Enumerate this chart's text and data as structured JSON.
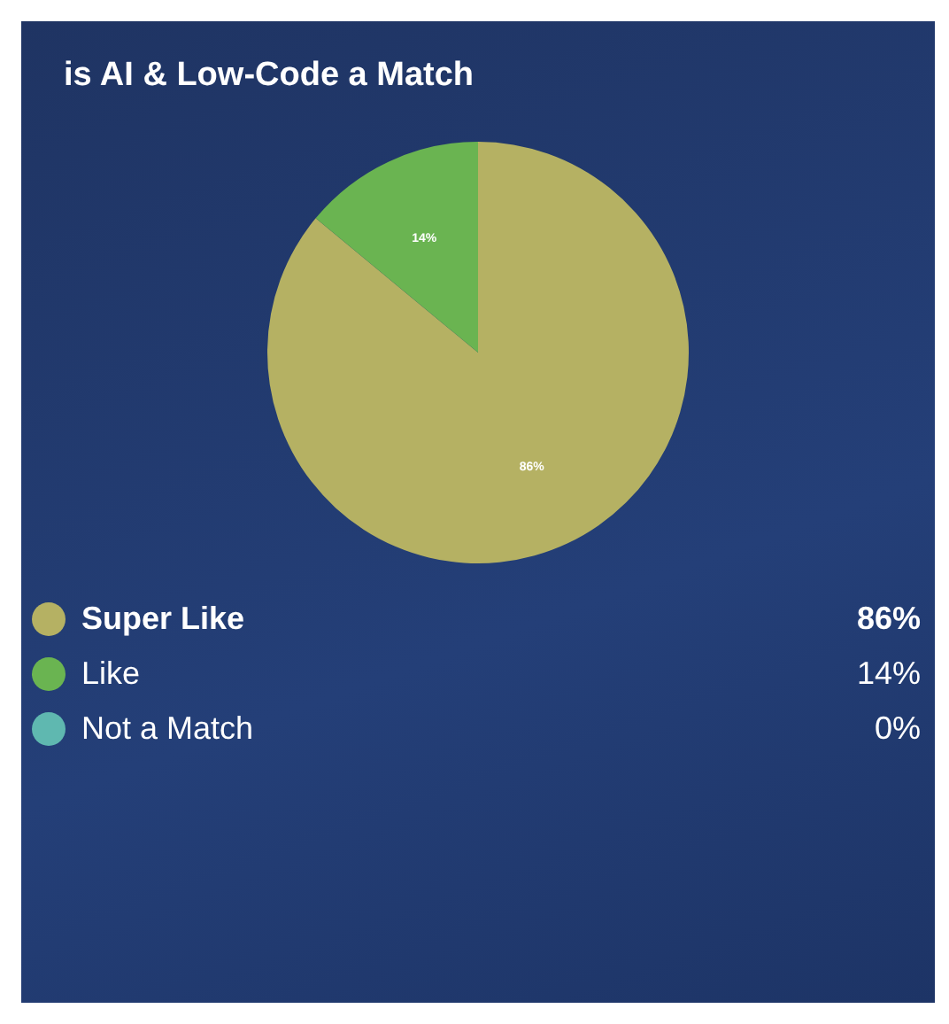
{
  "chart_data": {
    "type": "pie",
    "title": "is AI & Low-Code a Match",
    "categories": [
      "Super Like",
      "Like",
      "Not a Match"
    ],
    "values": [
      86,
      14,
      0
    ],
    "colors": [
      "#b5b163",
      "#6ab451",
      "#5fb8b0"
    ],
    "value_labels": [
      "86%",
      "14%",
      "0%"
    ],
    "legend": "bottom"
  }
}
